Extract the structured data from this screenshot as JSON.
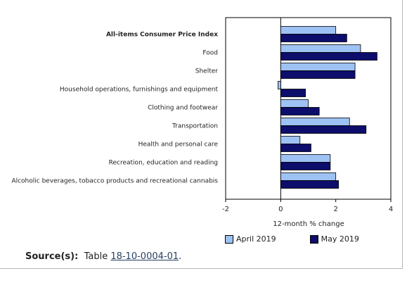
{
  "chart_data": {
    "type": "bar",
    "orientation": "horizontal",
    "categories": [
      "All-items Consumer Price Index",
      "Food",
      "Shelter",
      "Household operations, furnishings and equipment",
      "Clothing and footwear",
      "Transportation",
      "Health and personal care",
      "Recreation, education and reading",
      "Alcoholic beverages, tobacco products and recreational cannabis"
    ],
    "bold_category": "All-items Consumer Price Index",
    "series": [
      {
        "name": "April 2019",
        "color": "#9ec2f3",
        "values": [
          2.0,
          2.9,
          2.7,
          -0.1,
          1.0,
          2.5,
          0.7,
          1.8,
          2.0
        ]
      },
      {
        "name": "May 2019",
        "color": "#0d0d6b",
        "values": [
          2.4,
          3.5,
          2.7,
          0.9,
          1.4,
          3.1,
          1.1,
          1.8,
          2.1
        ]
      }
    ],
    "xlabel": "12-month % change",
    "xlim": [
      -2,
      4
    ],
    "xticks": [
      "-2",
      "0",
      "2",
      "4"
    ],
    "legend_position": "bottom",
    "grid": false
  },
  "source": {
    "label": "Source(s):",
    "prefix": "Table ",
    "link_text": "18-10-0004-01",
    "suffix": "."
  }
}
